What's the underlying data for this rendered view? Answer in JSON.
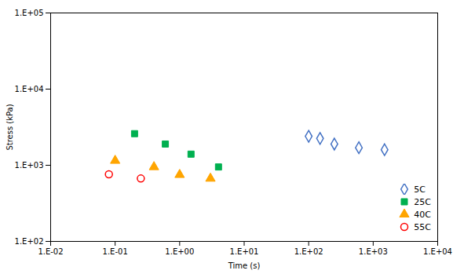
{
  "chart_data": {
    "type": "scatter",
    "xlabel": "Time (s)",
    "ylabel": "Stress (kPa)",
    "log": true,
    "legend": "lower right",
    "xlim": [
      0.01,
      10000
    ],
    "ylim": [
      100,
      100000
    ],
    "xticks": [
      {
        "value": 0.01,
        "label": "1.E-02"
      },
      {
        "value": 0.1,
        "label": "1.E-01"
      },
      {
        "value": 1,
        "label": "1.E+00"
      },
      {
        "value": 10,
        "label": "1.E+01"
      },
      {
        "value": 100,
        "label": "1.E+02"
      },
      {
        "value": 1000,
        "label": "1.E+03"
      },
      {
        "value": 10000,
        "label": "1.E+04"
      }
    ],
    "yticks": [
      {
        "value": 100,
        "label": "1.E+02"
      },
      {
        "value": 1000,
        "label": "1.E+03"
      },
      {
        "value": 10000,
        "label": "1.E+04"
      },
      {
        "value": 100000,
        "label": "1.E+05"
      }
    ],
    "series": [
      {
        "name": "5C",
        "color": "#4472C4",
        "marker": "open-diamond",
        "x": [
          100,
          150,
          250,
          600,
          1500
        ],
        "values": [
          2400,
          2250,
          1900,
          1700,
          1600
        ]
      },
      {
        "name": "25C",
        "color": "#00B050",
        "marker": "square",
        "x": [
          0.2,
          0.6,
          1.5,
          4.0
        ],
        "values": [
          2600,
          1900,
          1400,
          950
        ]
      },
      {
        "name": "40C",
        "color": "#FFA500",
        "marker": "triangle",
        "x": [
          0.1,
          0.4,
          1.0,
          3.0
        ],
        "values": [
          1150,
          950,
          750,
          670
        ]
      },
      {
        "name": "55C",
        "color": "#FF0000",
        "marker": "open-circle",
        "x": [
          0.08,
          0.25
        ],
        "values": [
          760,
          670
        ]
      }
    ]
  }
}
